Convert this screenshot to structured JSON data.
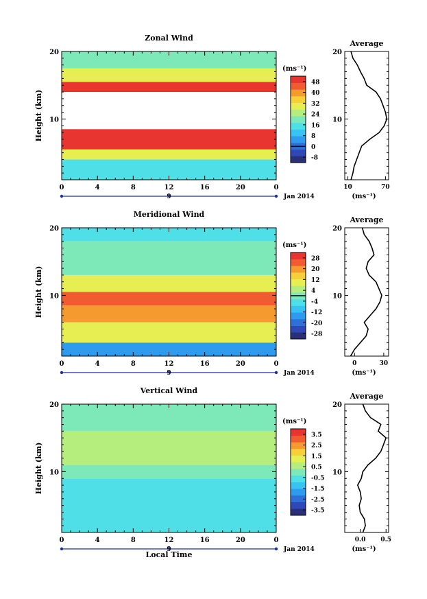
{
  "figure": {
    "date_label": "Jan 2014",
    "bottom_xlabel": "Local Time",
    "x_ticks": [
      "0",
      "4",
      "8",
      "12",
      "16",
      "20",
      "0"
    ],
    "day_marker": "9"
  },
  "chart_data": [
    {
      "type": "heatmap",
      "title": "Zonal Wind",
      "ylabel": "Height (km)",
      "xlabel": "",
      "xlim": [
        0,
        24
      ],
      "ylim": [
        1,
        20
      ],
      "y_ticks": [
        "20",
        "10"
      ],
      "colorbar": {
        "unit_label": "(ms⁻¹)",
        "tick_labels": [
          "48",
          "40",
          "32",
          "24",
          "16",
          "8",
          "0",
          "-8"
        ],
        "range": [
          -12,
          52
        ],
        "zero_line": 0
      },
      "regions": [
        {
          "t0": 0,
          "t1": 24,
          "h0": 1,
          "h1": 4,
          "value": 14
        },
        {
          "t0": 0,
          "t1": 24,
          "h0": 4,
          "h1": 5.5,
          "value": 30
        },
        {
          "t0": 0,
          "t1": 24,
          "h0": 5.5,
          "h1": 8.5,
          "value": 52
        },
        {
          "t0": 0,
          "t1": 24,
          "h0": 8.5,
          "h1": 14,
          "value": null
        },
        {
          "t0": 0,
          "t1": 24,
          "h0": 14,
          "h1": 15.5,
          "value": 52
        },
        {
          "t0": 0,
          "t1": 24,
          "h0": 15.5,
          "h1": 17.5,
          "value": 30
        },
        {
          "t0": 0,
          "t1": 24,
          "h0": 17.5,
          "h1": 20,
          "value": 18
        }
      ],
      "average_profile": {
        "title": "Average",
        "xlabel": "(ms⁻¹)",
        "x_tick_labels": [
          "10",
          "70"
        ],
        "xlim": [
          5,
          75
        ],
        "y_ticks": [
          "20",
          "10"
        ],
        "heights": [
          1,
          2,
          3,
          4,
          5,
          6,
          7,
          8,
          9,
          10,
          11,
          12,
          13,
          14,
          15,
          16,
          17,
          18,
          19,
          20
        ],
        "values": [
          15,
          18,
          20,
          24,
          28,
          32,
          45,
          60,
          68,
          72,
          70,
          66,
          62,
          55,
          40,
          36,
          30,
          25,
          18,
          15
        ]
      }
    },
    {
      "type": "heatmap",
      "title": "Meridional Wind",
      "ylabel": "Height (km)",
      "xlabel": "",
      "xlim": [
        0,
        24
      ],
      "ylim": [
        1,
        20
      ],
      "y_ticks": [
        "20",
        "10"
      ],
      "colorbar": {
        "unit_label": "(ms⁻¹)",
        "tick_labels": [
          "28",
          "20",
          "12",
          "4",
          "-4",
          "-12",
          "-20",
          "-28"
        ],
        "range": [
          -32,
          32
        ],
        "zero_line": 0
      },
      "regions": [
        {
          "t0": 0,
          "t1": 24,
          "h0": 1,
          "h1": 3,
          "value": -14
        },
        {
          "t0": 0,
          "t1": 24,
          "h0": 3,
          "h1": 6,
          "value": 10
        },
        {
          "t0": 0,
          "t1": 24,
          "h0": 6,
          "h1": 8.5,
          "value": 18
        },
        {
          "t0": 0,
          "t1": 24,
          "h0": 8.5,
          "h1": 10.5,
          "value": 24
        },
        {
          "t0": 0,
          "t1": 24,
          "h0": 10.5,
          "h1": 13,
          "value": 8
        },
        {
          "t0": 0,
          "t1": 24,
          "h0": 13,
          "h1": 18,
          "value": 2
        },
        {
          "t0": 0,
          "t1": 24,
          "h0": 18,
          "h1": 20,
          "value": -4
        }
      ],
      "average_profile": {
        "title": "Average",
        "xlabel": "(ms⁻¹)",
        "x_tick_labels": [
          "0",
          "30"
        ],
        "xlim": [
          -10,
          35
        ],
        "y_ticks": [
          "20",
          "10"
        ],
        "heights": [
          1,
          2,
          3,
          4,
          5,
          6,
          7,
          8,
          9,
          10,
          11,
          12,
          13,
          14,
          15,
          16,
          17,
          18,
          19,
          20
        ],
        "values": [
          -4,
          0,
          6,
          12,
          14,
          10,
          16,
          22,
          26,
          28,
          25,
          22,
          15,
          12,
          14,
          20,
          18,
          15,
          10,
          8
        ]
      }
    },
    {
      "type": "heatmap",
      "title": "Vertical Wind",
      "ylabel": "Height (km)",
      "xlabel": "Local Time",
      "xlim": [
        0,
        24
      ],
      "ylim": [
        1,
        20
      ],
      "y_ticks": [
        "20",
        "10"
      ],
      "colorbar": {
        "unit_label": "(ms⁻¹)",
        "tick_labels": [
          "3.5",
          "2.5",
          "1.5",
          "0.5",
          "-0.5",
          "-1.5",
          "-2.5",
          "-3.5"
        ],
        "range": [
          -4,
          4
        ],
        "zero_line": null
      },
      "regions": [
        {
          "t0": 0,
          "t1": 24,
          "h0": 1,
          "h1": 9,
          "value": -0.6
        },
        {
          "t0": 0,
          "t1": 24,
          "h0": 9,
          "h1": 11,
          "value": 0.1
        },
        {
          "t0": 0,
          "t1": 24,
          "h0": 11,
          "h1": 16,
          "value": 0.5
        },
        {
          "t0": 0,
          "t1": 24,
          "h0": 16,
          "h1": 20,
          "value": 0.3
        }
      ],
      "average_profile": {
        "title": "Average",
        "xlabel": "(ms⁻¹)",
        "x_tick_labels": [
          "0.0",
          "0.5"
        ],
        "xlim": [
          -0.3,
          0.55
        ],
        "y_ticks": [
          "20",
          "10"
        ],
        "heights": [
          1,
          2,
          3,
          4,
          5,
          6,
          7,
          8,
          9,
          10,
          11,
          12,
          13,
          14,
          15,
          16,
          17,
          18,
          19,
          20
        ],
        "values": [
          0.05,
          0.1,
          0.08,
          0.0,
          -0.02,
          0.02,
          0.0,
          -0.05,
          0.02,
          0.05,
          0.15,
          0.3,
          0.4,
          0.45,
          0.5,
          0.35,
          0.4,
          0.2,
          0.1,
          0.05
        ]
      }
    }
  ]
}
